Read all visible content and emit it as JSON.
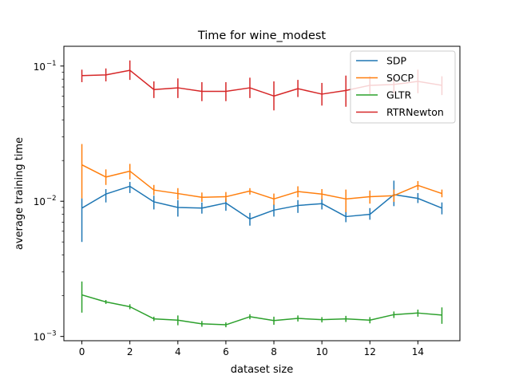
{
  "chart_data": {
    "type": "line",
    "title": "Time for wine_modest",
    "xlabel": "dataset size",
    "ylabel": "average training time",
    "xscale": "linear",
    "yscale": "log",
    "xlim": [
      -0.75,
      15.75
    ],
    "ylim": [
      0.00093,
      0.14
    ],
    "x_ticks": [
      0,
      2,
      4,
      6,
      8,
      10,
      12,
      14
    ],
    "x_tick_labels": [
      "0",
      "2",
      "4",
      "6",
      "8",
      "10",
      "12",
      "14"
    ],
    "y_ticks": [
      0.001,
      0.01,
      0.1
    ],
    "y_tick_labels": [
      "10",
      "10",
      "10"
    ],
    "y_tick_exponents": [
      "−3",
      "−2",
      "−1"
    ],
    "grid": false,
    "legend_position": "top-right",
    "x": [
      0,
      1,
      2,
      3,
      4,
      5,
      6,
      7,
      8,
      9,
      10,
      11,
      12,
      13,
      14,
      15
    ],
    "series": [
      {
        "name": "SDP",
        "color": "#1f77b4",
        "values": [
          0.0089,
          0.0113,
          0.0129,
          0.0099,
          0.009,
          0.0089,
          0.0097,
          0.0074,
          0.0086,
          0.0093,
          0.0096,
          0.0077,
          0.008,
          0.0112,
          0.0105,
          0.0089
        ],
        "err_low": [
          0.005,
          0.0098,
          0.0115,
          0.0087,
          0.0077,
          0.0081,
          0.0085,
          0.0066,
          0.0077,
          0.0082,
          0.0087,
          0.007,
          0.0073,
          0.0092,
          0.0097,
          0.008
        ],
        "err_high": [
          0.0105,
          0.0123,
          0.0139,
          0.011,
          0.0102,
          0.0098,
          0.0105,
          0.0082,
          0.0095,
          0.0102,
          0.0105,
          0.0086,
          0.0089,
          0.0142,
          0.0115,
          0.0098
        ]
      },
      {
        "name": "SOCP",
        "color": "#ff7f0e",
        "values": [
          0.0186,
          0.0151,
          0.0167,
          0.0121,
          0.0114,
          0.0107,
          0.0108,
          0.0119,
          0.0104,
          0.0118,
          0.0113,
          0.0104,
          0.0108,
          0.011,
          0.0131,
          0.0114
        ],
        "err_low": [
          0.0105,
          0.0132,
          0.0145,
          0.0111,
          0.0103,
          0.0099,
          0.0099,
          0.0112,
          0.0094,
          0.0107,
          0.0103,
          0.0083,
          0.0096,
          0.0099,
          0.0121,
          0.0107
        ],
        "err_high": [
          0.0265,
          0.0172,
          0.0189,
          0.0132,
          0.0125,
          0.0116,
          0.0117,
          0.0125,
          0.0114,
          0.0129,
          0.0123,
          0.0122,
          0.012,
          0.0122,
          0.0141,
          0.0122
        ]
      },
      {
        "name": "GLTR",
        "color": "#2ca02c",
        "values": [
          0.00203,
          0.0018,
          0.00166,
          0.00135,
          0.00132,
          0.00124,
          0.00122,
          0.0014,
          0.00131,
          0.00136,
          0.00133,
          0.00135,
          0.00132,
          0.00145,
          0.00149,
          0.00144
        ],
        "err_low": [
          0.0015,
          0.00174,
          0.00159,
          0.0013,
          0.00121,
          0.00118,
          0.00117,
          0.00134,
          0.00122,
          0.00129,
          0.00127,
          0.00128,
          0.00125,
          0.00137,
          0.0014,
          0.00124
        ],
        "err_high": [
          0.00255,
          0.00186,
          0.00173,
          0.0014,
          0.00143,
          0.0013,
          0.00127,
          0.00146,
          0.0014,
          0.00143,
          0.00139,
          0.00142,
          0.00139,
          0.00153,
          0.00158,
          0.00164
        ]
      },
      {
        "name": "RTRNewton",
        "color": "#d62728",
        "values": [
          0.085,
          0.086,
          0.093,
          0.067,
          0.069,
          0.065,
          0.065,
          0.069,
          0.06,
          0.068,
          0.062,
          0.066,
          0.072,
          0.073,
          0.077,
          0.072
        ],
        "err_low": [
          0.076,
          0.077,
          0.079,
          0.058,
          0.058,
          0.055,
          0.055,
          0.058,
          0.047,
          0.059,
          0.051,
          0.05,
          0.062,
          0.063,
          0.063,
          0.061
        ],
        "err_high": [
          0.094,
          0.096,
          0.11,
          0.077,
          0.081,
          0.076,
          0.076,
          0.082,
          0.077,
          0.079,
          0.075,
          0.085,
          0.084,
          0.083,
          0.094,
          0.084
        ]
      }
    ]
  }
}
